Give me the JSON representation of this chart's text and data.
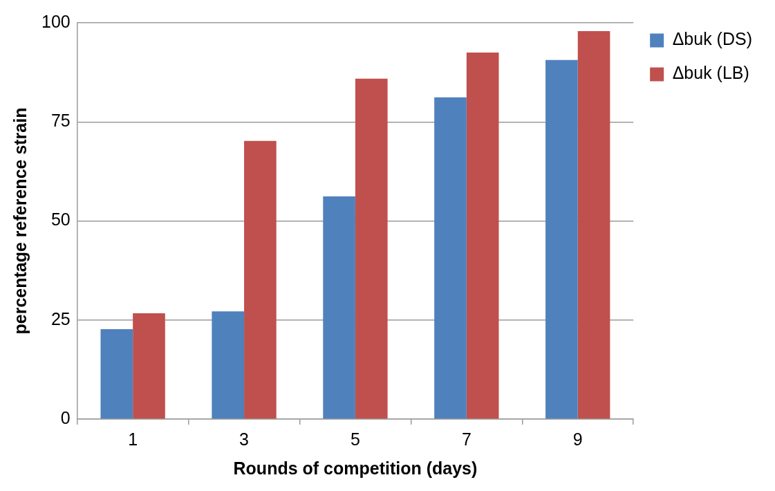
{
  "chart_data": {
    "type": "bar",
    "xlabel": "Rounds of competition (days)",
    "ylabel": "percentage reference strain",
    "categories": [
      "1",
      "3",
      "5",
      "7",
      "9"
    ],
    "series": [
      {
        "name": "Δbuk (DS)",
        "color": "#4f81bd",
        "values": [
          22.7,
          27.2,
          56.2,
          81.2,
          90.6
        ]
      },
      {
        "name": "Δbuk (LB)",
        "color": "#c0504d",
        "values": [
          26.7,
          70.2,
          85.9,
          92.5,
          97.9
        ]
      }
    ],
    "ylim": [
      0,
      100
    ],
    "yticks": [
      0,
      25,
      50,
      75,
      100
    ],
    "grid": "y",
    "legend": "right"
  }
}
